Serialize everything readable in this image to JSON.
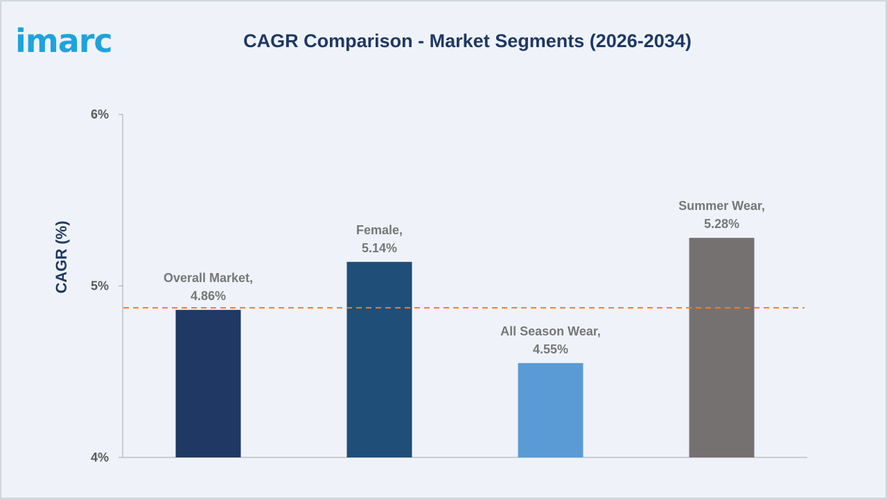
{
  "logo_text": "imarc",
  "title": "CAGR Comparison - Market Segments (2026-2034)",
  "chart_data": {
    "type": "bar",
    "title": "CAGR Comparison - Market Segments (2026-2034)",
    "xlabel": "",
    "ylabel": "CAGR (%)",
    "ylim": [
      4,
      6
    ],
    "yticks": [
      4,
      5,
      6
    ],
    "ytick_labels": [
      "4%",
      "5%",
      "6%"
    ],
    "categories": [
      "Overall Market",
      "Female",
      "All Season Wear",
      "Summer Wear"
    ],
    "values": [
      4.86,
      5.14,
      4.55,
      5.28
    ],
    "value_labels": [
      "4.86%",
      "5.14%",
      "4.55%",
      "5.28%"
    ],
    "bar_colors": [
      "#203864",
      "#1f4e79",
      "#5b9bd5",
      "#767171"
    ],
    "reference_line": {
      "value": 4.86,
      "color": "#ed7d31",
      "style": "dashed"
    },
    "grid": false,
    "legend": "none"
  }
}
